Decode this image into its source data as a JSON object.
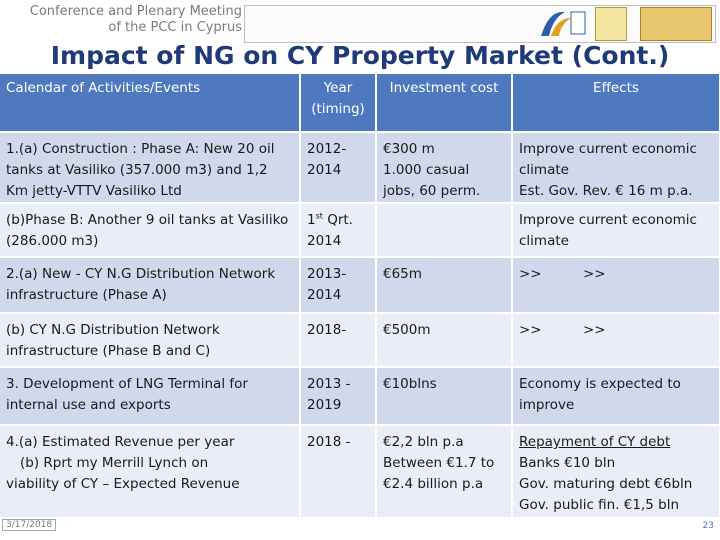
{
  "header": {
    "meeting_line1": "Conference and Plenary Meeting",
    "meeting_line2": "of the PCC in Cyprus"
  },
  "title": "Impact of NG on CY Property Market (Cont.)",
  "table": {
    "headers": [
      "Calendar of Activities/Events",
      "Year (timing)",
      "Investment cost",
      "Effects"
    ],
    "rows": [
      {
        "activity": [
          "1.(a)  Construction : Phase A: New 20 oil tanks at Vasiliko (357.000 m3)  and 1,2 Km jetty-VTTV Vasiliko Ltd"
        ],
        "year": [
          "2012-",
          "2014"
        ],
        "cost": [
          "€300 m",
          "1.000 casual jobs, 60 perm."
        ],
        "effects": [
          "Improve current economic climate",
          "Est. Gov. Rev. € 16 m p.a."
        ]
      },
      {
        "activity": [
          "(b)Phase B: Another 9 oil tanks at Vasiliko (286.000 m3)"
        ],
        "year_ordinal": "1",
        "year_sup": "st",
        "year_rest": " Qrt.",
        "year2": "2014",
        "cost": [],
        "effects": [
          "Improve current economic climate"
        ]
      },
      {
        "activity": [
          "2.(a) New - CY N.G Distribution Network infrastructure (Phase A)"
        ],
        "year": [
          "2013-",
          "2014"
        ],
        "cost": [
          "€65m"
        ],
        "effects_pair": [
          ">>",
          ">>"
        ]
      },
      {
        "activity": [
          "(b) CY N.G Distribution Network infrastructure (Phase B and C)"
        ],
        "year": [
          "2018-"
        ],
        "cost": [
          "€500m"
        ],
        "effects_pair": [
          ">>",
          ">>"
        ]
      },
      {
        "activity": [
          "3. Development of LNG Terminal for internal use and exports"
        ],
        "year": [
          "2013 -",
          "2019"
        ],
        "cost": [
          "€10blns"
        ],
        "effects": [
          "Economy is expected to improve"
        ]
      },
      {
        "activity": [
          "4.(a) Estimated Revenue per year",
          "(b) Rprt my Merrill Lynch  on",
          "viability of CY – Expected Revenue"
        ],
        "year": [
          "2018 -"
        ],
        "cost": [
          "€2,2 bln p.a",
          "Between €1.7 to",
          "€2.4 billion p.a"
        ],
        "effects": [
          "Repayment of CY debt",
          "Banks €10 bln",
          "Gov. maturing debt €6bln",
          "Gov. public fin. €1,5 bln"
        ]
      }
    ]
  },
  "footer": {
    "date": "3/17/2018",
    "page": "23"
  }
}
